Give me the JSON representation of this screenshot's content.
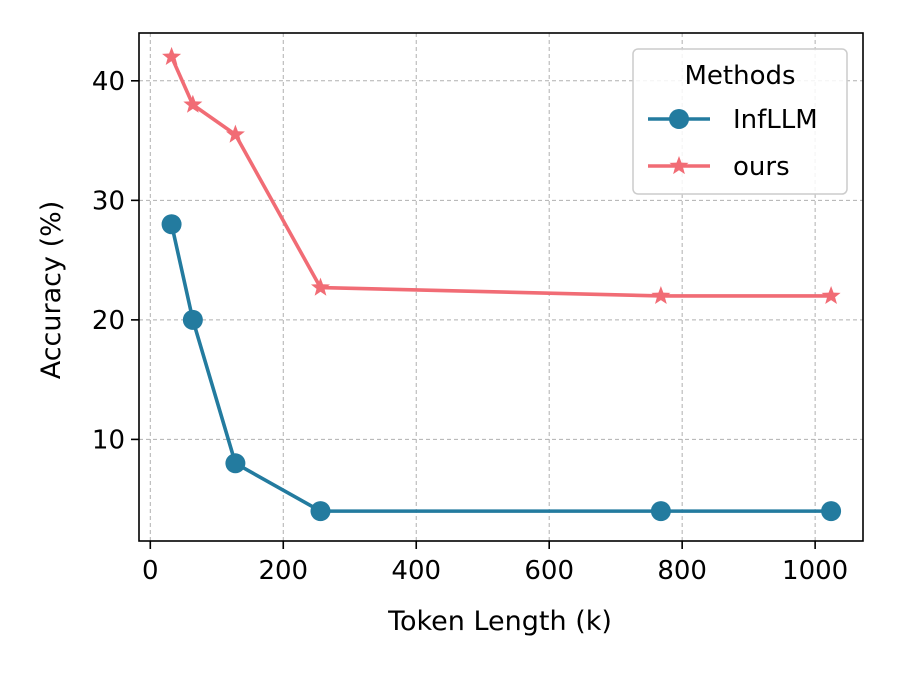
{
  "chart_data": {
    "type": "line",
    "xlabel": "Token Length (k)",
    "ylabel": "Accuracy (%)",
    "xlim": [
      -17,
      1072
    ],
    "ylim": [
      1.5,
      44
    ],
    "xticks": [
      0,
      200,
      400,
      600,
      800,
      1000
    ],
    "yticks": [
      10,
      20,
      30,
      40
    ],
    "grid": true,
    "legend": {
      "title": "Methods",
      "placement": "top-right"
    },
    "series": [
      {
        "name": "InfLLM",
        "color": "#237b9f",
        "marker": "circle",
        "x": [
          32,
          64,
          128,
          256,
          768,
          1024
        ],
        "y": [
          28,
          20,
          8,
          4,
          4,
          4
        ]
      },
      {
        "name": "ours",
        "color": "#f16c75",
        "marker": "star",
        "x": [
          32,
          64,
          128,
          256,
          768,
          1024
        ],
        "y": [
          42,
          38,
          35.5,
          22.7,
          22,
          22
        ]
      }
    ]
  }
}
